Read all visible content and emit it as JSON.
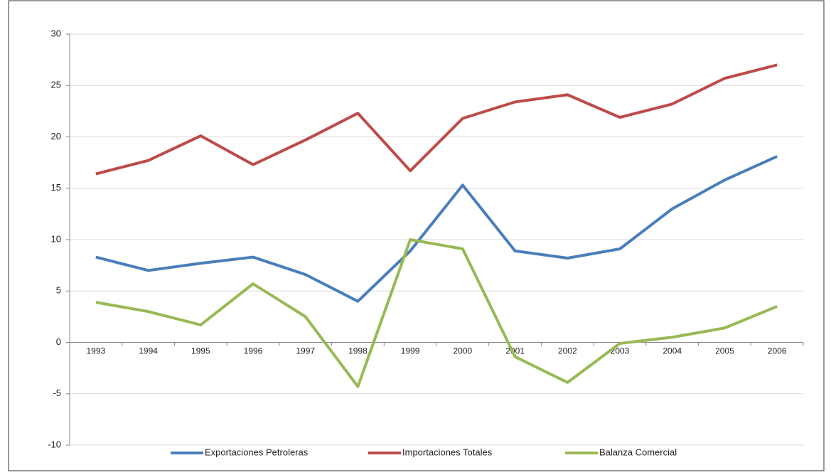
{
  "chart_data": {
    "type": "line",
    "categories": [
      "1993",
      "1994",
      "1995",
      "1996",
      "1997",
      "1998",
      "1999",
      "2000",
      "2001",
      "2002",
      "2003",
      "2004",
      "2005",
      "2006"
    ],
    "series": [
      {
        "name": "Exportaciones Petroleras",
        "color": "#4a7ebb",
        "values": [
          8.3,
          7.0,
          7.7,
          8.3,
          6.6,
          4.0,
          8.9,
          15.3,
          8.9,
          8.2,
          9.1,
          13.0,
          15.8,
          18.1
        ]
      },
      {
        "name": "Importaciones Totales",
        "color": "#be4b48",
        "values": [
          16.4,
          17.7,
          20.1,
          17.3,
          19.7,
          22.3,
          16.7,
          21.8,
          23.4,
          24.1,
          21.9,
          23.2,
          25.7,
          27.0
        ]
      },
      {
        "name": "Balanza Comercial",
        "color": "#98b954",
        "values": [
          3.9,
          3.0,
          1.7,
          5.7,
          2.5,
          -4.3,
          10.0,
          9.1,
          -1.4,
          -3.9,
          -0.1,
          0.5,
          1.4,
          3.5
        ]
      }
    ],
    "ylim": [
      -10,
      30
    ],
    "yticks": [
      -10,
      -5,
      0,
      5,
      10,
      15,
      20,
      25,
      30
    ],
    "grid": true,
    "legend": "bottom"
  }
}
